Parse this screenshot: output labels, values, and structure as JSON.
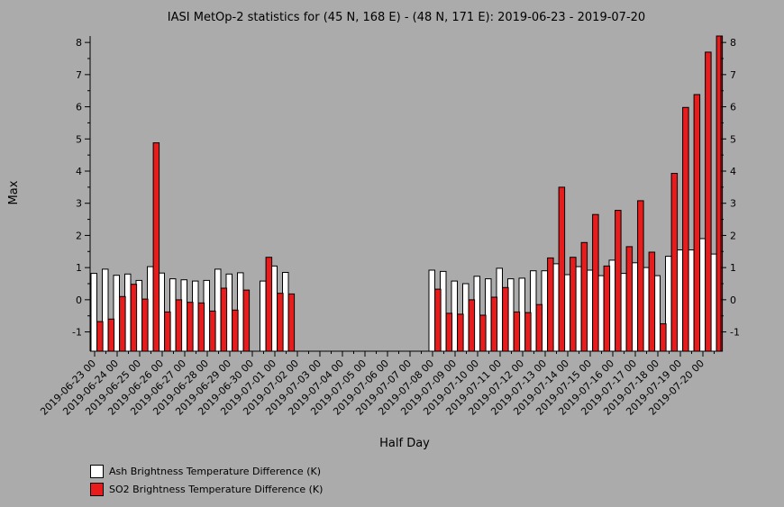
{
  "chart_data": {
    "type": "bar",
    "title": "IASI MetOp-2 statistics for (45 N, 168 E) - (48 N, 171 E): 2019-06-23 - 2019-07-20",
    "xlabel": "Half Day",
    "ylabel": "Max",
    "ylim": [
      -1.6,
      8.2
    ],
    "y_ticks": [
      -1,
      0,
      1,
      2,
      3,
      4,
      5,
      6,
      7,
      8
    ],
    "categories": [
      "2019-06-23 00",
      "2019-06-23 12",
      "2019-06-24 00",
      "2019-06-24 12",
      "2019-06-25 00",
      "2019-06-25 12",
      "2019-06-26 00",
      "2019-06-26 12",
      "2019-06-27 00",
      "2019-06-27 12",
      "2019-06-28 00",
      "2019-06-28 12",
      "2019-06-29 00",
      "2019-06-29 12",
      "2019-06-30 00",
      "2019-06-30 12",
      "2019-07-01 00",
      "2019-07-01 12",
      "2019-07-02 00",
      "2019-07-02 12",
      "2019-07-03 00",
      "2019-07-03 12",
      "2019-07-04 00",
      "2019-07-04 12",
      "2019-07-05 00",
      "2019-07-05 12",
      "2019-07-06 00",
      "2019-07-06 12",
      "2019-07-07 00",
      "2019-07-07 12",
      "2019-07-08 00",
      "2019-07-08 12",
      "2019-07-09 00",
      "2019-07-09 12",
      "2019-07-10 00",
      "2019-07-10 12",
      "2019-07-11 00",
      "2019-07-11 12",
      "2019-07-12 00",
      "2019-07-12 12",
      "2019-07-13 00",
      "2019-07-13 12",
      "2019-07-14 00",
      "2019-07-14 12",
      "2019-07-15 00",
      "2019-07-15 12",
      "2019-07-16 00",
      "2019-07-16 12",
      "2019-07-17 00",
      "2019-07-17 12",
      "2019-07-18 00",
      "2019-07-18 12",
      "2019-07-19 00",
      "2019-07-19 12",
      "2019-07-20 00",
      "2019-07-20 12"
    ],
    "tick_labels": [
      "2019-06-23 00",
      "2019-06-24 00",
      "2019-06-25 00",
      "2019-06-26 00",
      "2019-06-27 00",
      "2019-06-28 00",
      "2019-06-29 00",
      "2019-06-30 00",
      "2019-07-01 00",
      "2019-07-02 00",
      "2019-07-03 00",
      "2019-07-04 00",
      "2019-07-05 00",
      "2019-07-06 00",
      "2019-07-07 00",
      "2019-07-08 00",
      "2019-07-09 00",
      "2019-07-10 00",
      "2019-07-11 00",
      "2019-07-12 00",
      "2019-07-13 00",
      "2019-07-14 00",
      "2019-07-15 00",
      "2019-07-16 00",
      "2019-07-17 00",
      "2019-07-18 00",
      "2019-07-19 00",
      "2019-07-20 00"
    ],
    "series": [
      {
        "name": "Ash Brightness Temperature Difference (K)",
        "color": "#ffffff",
        "values": [
          0.82,
          0.95,
          0.76,
          0.8,
          0.6,
          1.03,
          0.83,
          0.65,
          0.62,
          0.58,
          0.6,
          0.95,
          0.8,
          0.84,
          null,
          0.58,
          1.05,
          0.85,
          null,
          null,
          null,
          null,
          null,
          null,
          null,
          null,
          null,
          null,
          null,
          null,
          0.92,
          0.88,
          0.58,
          0.5,
          0.73,
          0.65,
          0.98,
          0.65,
          0.67,
          0.9,
          0.9,
          1.12,
          0.78,
          1.03,
          0.92,
          0.75,
          1.23,
          0.82,
          1.15,
          1.0,
          0.75,
          1.35,
          1.55,
          1.55,
          1.9,
          1.42
        ]
      },
      {
        "name": "SO2 Brightness Temperature Difference (K)",
        "color": "#e81c1c",
        "values": [
          -0.68,
          -0.6,
          0.1,
          0.48,
          0.02,
          4.88,
          -0.38,
          0.0,
          -0.08,
          -0.1,
          -0.35,
          0.36,
          -0.32,
          0.3,
          null,
          1.32,
          0.2,
          0.18,
          null,
          null,
          null,
          null,
          null,
          null,
          null,
          null,
          null,
          null,
          null,
          null,
          0.33,
          -0.42,
          -0.45,
          0.0,
          -0.48,
          0.08,
          0.38,
          -0.38,
          -0.4,
          -0.15,
          1.3,
          3.5,
          1.32,
          1.78,
          2.65,
          1.05,
          2.78,
          1.65,
          3.08,
          1.48,
          -0.75,
          3.93,
          5.98,
          6.38,
          7.7,
          8.2
        ]
      }
    ],
    "grid": false,
    "legend_position": "bottom-left"
  }
}
